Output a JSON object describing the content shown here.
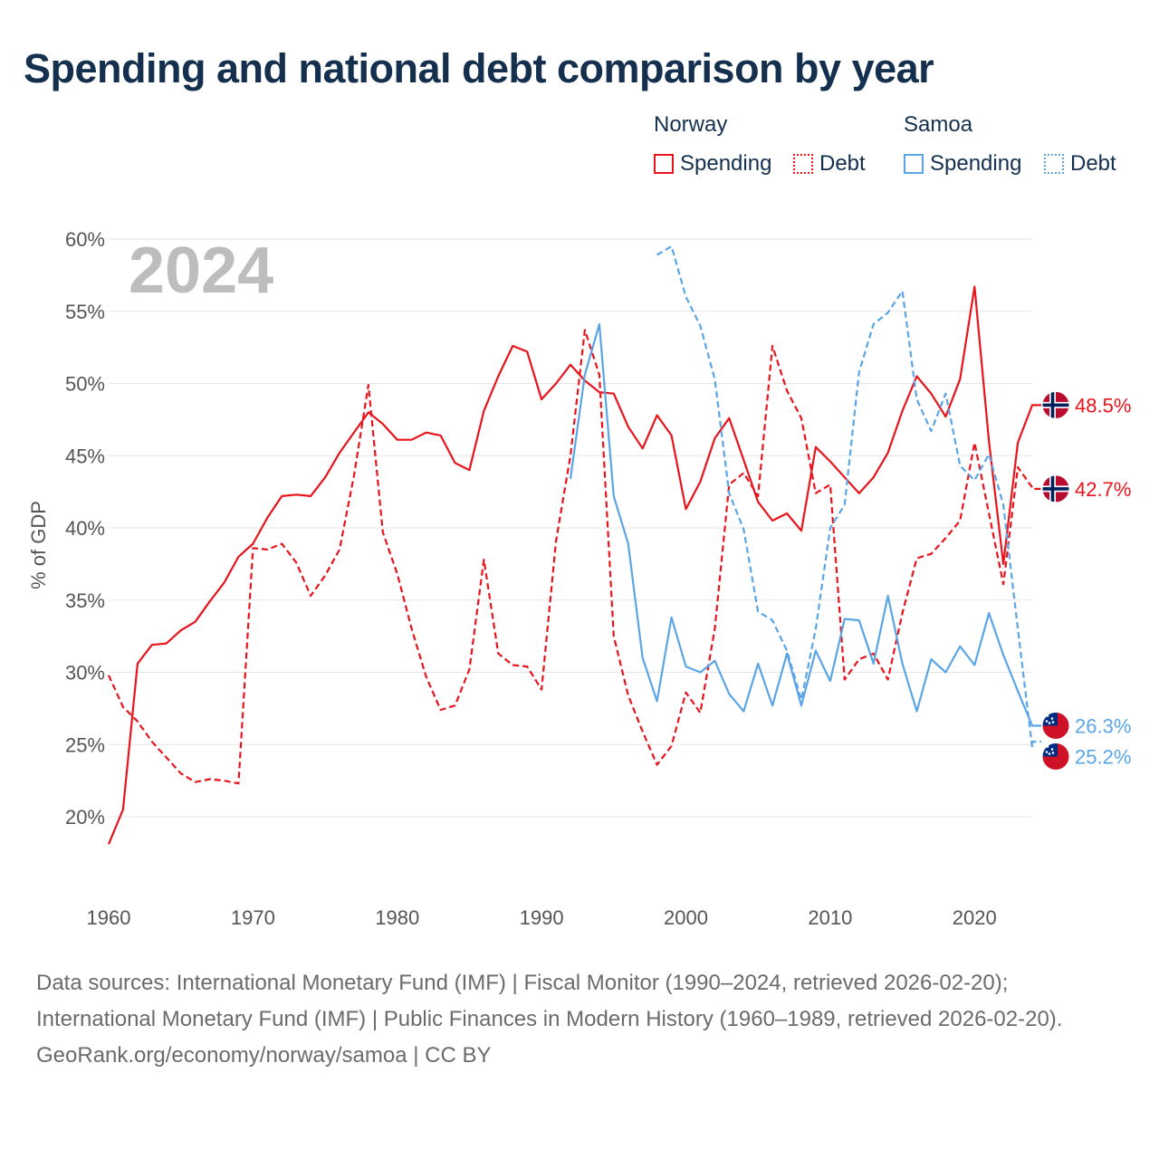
{
  "title": "Spending and national debt comparison by year",
  "year_watermark": "2024",
  "legend": {
    "groups": [
      {
        "country": "Norway",
        "items": [
          {
            "label": "Spending",
            "color": "#e8131b",
            "style": "solid"
          },
          {
            "label": "Debt",
            "color": "#e8131b",
            "style": "dotted"
          }
        ]
      },
      {
        "country": "Samoa",
        "items": [
          {
            "label": "Spending",
            "color": "#5aa5e6",
            "style": "solid"
          },
          {
            "label": "Debt",
            "color": "#5aa5e6",
            "style": "dotted"
          }
        ]
      }
    ]
  },
  "chart_data": {
    "type": "line",
    "ylabel": "% of GDP",
    "xlabel": "",
    "xlim": [
      1960,
      2024
    ],
    "ylim": [
      20,
      60
    ],
    "x_ticks": [
      1960,
      1970,
      1980,
      1990,
      2000,
      2010,
      2020
    ],
    "y_ticks": [
      20,
      25,
      30,
      35,
      40,
      45,
      50,
      55,
      60
    ],
    "y_tick_suffix": "%",
    "grid": true,
    "series": [
      {
        "name": "Norway Spending",
        "country": "Norway",
        "color": "#e8131b",
        "dash": "solid",
        "start_year": 1960,
        "values": [
          18.1,
          20.5,
          30.6,
          31.9,
          32.0,
          32.9,
          33.5,
          34.9,
          36.2,
          38.0,
          38.9,
          40.7,
          42.2,
          42.3,
          42.2,
          43.5,
          45.2,
          46.6,
          48.0,
          47.2,
          46.1,
          46.1,
          46.6,
          46.4,
          44.5,
          44.0,
          48.1,
          50.5,
          52.6,
          52.2,
          48.9,
          50.0,
          51.3,
          50.2,
          49.4,
          49.3,
          47.0,
          45.5,
          47.8,
          46.4,
          41.3,
          43.2,
          46.2,
          47.6,
          44.7,
          41.8,
          40.5,
          41.0,
          39.8,
          45.6,
          44.6,
          43.5,
          42.4,
          43.5,
          45.2,
          48.1,
          50.5,
          49.3,
          47.7,
          50.3,
          56.7,
          46.0,
          37.5,
          45.9,
          48.5
        ],
        "end_label": "48.5%"
      },
      {
        "name": "Norway Debt",
        "country": "Norway",
        "color": "#e8131b",
        "dash": "dashed",
        "start_year": 1960,
        "values": [
          29.8,
          27.6,
          26.6,
          25.2,
          24.1,
          23.0,
          22.4,
          22.6,
          22.5,
          22.3,
          38.6,
          38.5,
          38.9,
          37.6,
          35.3,
          36.7,
          38.5,
          43.6,
          49.9,
          39.7,
          36.8,
          33.0,
          29.7,
          27.4,
          27.7,
          30.2,
          37.8,
          31.3,
          30.5,
          30.4,
          28.8,
          39.1,
          45.0,
          53.7,
          50.6,
          32.5,
          28.4,
          25.9,
          23.6,
          24.9,
          28.6,
          27.2,
          33.0,
          43.0,
          43.8,
          42.2,
          52.6,
          49.5,
          47.6,
          42.4,
          43.0,
          29.5,
          30.9,
          31.3,
          29.5,
          34.1,
          37.9,
          38.2,
          39.3,
          40.5,
          45.9,
          41.0,
          36.1,
          44.2,
          42.8,
          42.7
        ],
        "end_label": "42.7%"
      },
      {
        "name": "Samoa Spending",
        "country": "Samoa",
        "color": "#5aa5e6",
        "dash": "solid",
        "start_year": 1992,
        "values": [
          43.4,
          50.6,
          54.1,
          42.2,
          38.9,
          31.0,
          28.0,
          33.8,
          30.4,
          30.0,
          30.8,
          28.5,
          27.3,
          30.6,
          27.7,
          31.3,
          27.7,
          31.5,
          29.4,
          33.7,
          33.6,
          30.6,
          35.3,
          30.6,
          27.3,
          30.9,
          30.0,
          31.8,
          30.5,
          34.1,
          31.2,
          28.7,
          26.3
        ],
        "end_label": "26.3%"
      },
      {
        "name": "Samoa Debt",
        "country": "Samoa",
        "color": "#5aa5e6",
        "dash": "dashed",
        "start_year": 1998,
        "values": [
          58.9,
          59.5,
          56.0,
          54.0,
          50.3,
          42.4,
          39.9,
          34.2,
          33.6,
          31.5,
          28.1,
          33.0,
          40.0,
          41.6,
          50.8,
          54.1,
          54.9,
          56.4,
          48.9,
          46.7,
          49.3,
          44.3,
          43.3,
          45.1,
          41.6,
          33.0,
          24.8,
          25.2
        ],
        "end_label": "25.2%"
      }
    ]
  },
  "footer": {
    "sources": "Data sources: International Monetary Fund (IMF) | Fiscal Monitor (1990–2024, retrieved 2026-02-20); International Monetary Fund (IMF) | Public Finances in Modern History (1960–1989, retrieved 2026-02-20).",
    "credit": "GeoRank.org/economy/norway/samoa | CC BY"
  }
}
